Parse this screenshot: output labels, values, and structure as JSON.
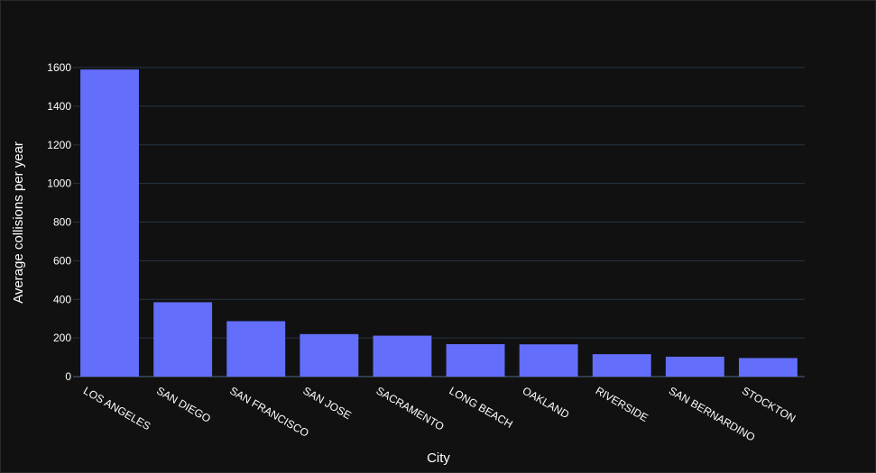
{
  "chart_data": {
    "type": "bar",
    "title": "",
    "xlabel": "City",
    "ylabel": "Average collisions per year",
    "categories": [
      "LOS ANGELES",
      "SAN DIEGO",
      "SAN FRANCISCO",
      "SAN JOSE",
      "SACRAMENTO",
      "LONG BEACH",
      "OAKLAND",
      "RIVERSIDE",
      "SAN BERNARDINO",
      "STOCKTON"
    ],
    "values": [
      1590,
      385,
      287,
      220,
      212,
      168,
      167,
      116,
      103,
      96
    ],
    "ylim": [
      0,
      1600
    ],
    "yticks": [
      0,
      200,
      400,
      600,
      800,
      1000,
      1200,
      1400,
      1600
    ],
    "grid": true,
    "colors": {
      "bar": "#636efa",
      "background": "#111111",
      "grid": "#283442",
      "text": "#ffffff"
    }
  }
}
